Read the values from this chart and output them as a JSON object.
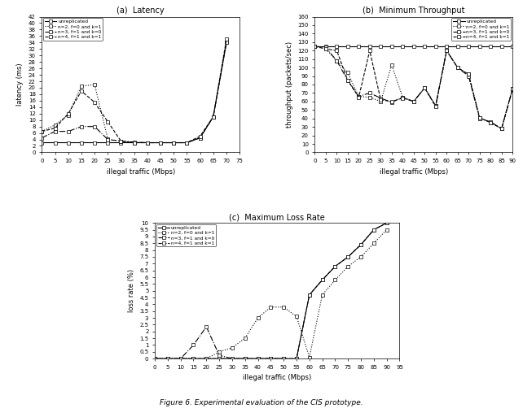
{
  "latency": {
    "xlabel": "illegal traffic (Mbps)",
    "ylabel": "latency (ms)",
    "title": "(a)  Latency",
    "xlim": [
      0,
      75
    ],
    "ylim": [
      0,
      42
    ],
    "xticks": [
      0,
      5,
      10,
      15,
      20,
      25,
      30,
      35,
      40,
      45,
      50,
      55,
      60,
      65,
      70,
      75
    ],
    "yticks": [
      0,
      2,
      4,
      6,
      8,
      10,
      12,
      14,
      16,
      18,
      20,
      22,
      24,
      26,
      28,
      30,
      32,
      34,
      36,
      38,
      40,
      42
    ],
    "series": [
      {
        "label": "unreplicated",
        "x": [
          0,
          5,
          10,
          15,
          20,
          25,
          30,
          35,
          40,
          45,
          50,
          55,
          60,
          65,
          70
        ],
        "y": [
          3.0,
          3.0,
          3.0,
          3.0,
          3.0,
          3.0,
          3.0,
          3.0,
          3.0,
          3.0,
          3.0,
          3.0,
          4.5,
          11.0,
          34.0
        ],
        "linestyle": "-",
        "marker": "s",
        "color": "black"
      },
      {
        "label": "n=2, f=0 and k=1",
        "x": [
          0,
          5,
          10,
          15,
          20,
          25
        ],
        "y": [
          6.5,
          8.5,
          11.5,
          20.5,
          21.0,
          4.2
        ],
        "linestyle": ":",
        "marker": "s",
        "color": "black"
      },
      {
        "label": "n=3, f=1 and k=0",
        "x": [
          0,
          5,
          10,
          15,
          20,
          25,
          30,
          35,
          40,
          45,
          50,
          55,
          60,
          65,
          70
        ],
        "y": [
          4.5,
          6.5,
          6.5,
          8.0,
          8.0,
          4.0,
          3.5,
          3.2,
          3.0,
          3.0,
          3.0,
          3.0,
          4.5,
          11.0,
          34.0
        ],
        "linestyle": "-.",
        "marker": "s",
        "color": "black"
      },
      {
        "label": "n=4, f=1 and k=1",
        "x": [
          0,
          5,
          10,
          15,
          20,
          25,
          30,
          35,
          40,
          45,
          50,
          55,
          60,
          65,
          70
        ],
        "y": [
          6.5,
          7.5,
          12.0,
          19.0,
          15.5,
          9.5,
          3.5,
          3.0,
          3.0,
          3.0,
          3.0,
          3.0,
          5.0,
          11.0,
          35.0
        ],
        "linestyle": "--",
        "marker": "s",
        "color": "black"
      }
    ]
  },
  "throughput": {
    "xlabel": "illegal traffic (Mbps)",
    "ylabel": "throughput (packets/sec)",
    "title": "(b)  Minimum Throughput",
    "xlim": [
      0,
      90
    ],
    "ylim": [
      0,
      160
    ],
    "xticks": [
      0,
      5,
      10,
      15,
      20,
      25,
      30,
      35,
      40,
      45,
      50,
      55,
      60,
      65,
      70,
      75,
      80,
      85,
      90
    ],
    "yticks": [
      0,
      10,
      20,
      30,
      40,
      50,
      60,
      70,
      80,
      90,
      100,
      110,
      120,
      130,
      140,
      150,
      160
    ],
    "series": [
      {
        "label": "unreplicated",
        "x": [
          0,
          5,
          10,
          15,
          20,
          25,
          30,
          35,
          40,
          45,
          50,
          55,
          60,
          65,
          70,
          75,
          80,
          85,
          90
        ],
        "y": [
          125,
          125,
          125,
          125,
          125,
          125,
          125,
          125,
          125,
          125,
          125,
          125,
          125,
          125,
          125,
          125,
          125,
          125,
          125
        ],
        "linestyle": "-",
        "marker": "s",
        "color": "black"
      },
      {
        "label": "n=2, f=0 and k=1",
        "x": [
          0,
          5,
          10,
          15,
          20,
          25,
          30,
          35,
          40,
          45,
          50,
          55,
          60,
          65,
          70,
          75,
          80,
          85,
          90
        ],
        "y": [
          125,
          122,
          108,
          94,
          66,
          65,
          60,
          103,
          65,
          60,
          76,
          55,
          120,
          100,
          92,
          41,
          35,
          28,
          75
        ],
        "linestyle": ":",
        "marker": "s",
        "color": "black"
      },
      {
        "label": "n=3, f=1 and k=0",
        "x": [
          0,
          5,
          10,
          15,
          20,
          25,
          30,
          35,
          40,
          45,
          50,
          55,
          60,
          65,
          70,
          75,
          80,
          85,
          90
        ],
        "y": [
          125,
          124,
          108,
          85,
          66,
          70,
          64,
          59,
          65,
          60,
          76,
          55,
          120,
          100,
          90,
          40,
          36,
          28,
          74
        ],
        "linestyle": "-.",
        "marker": "s",
        "color": "black"
      },
      {
        "label": "n=4, f=1 and k=1",
        "x": [
          0,
          5,
          10,
          15,
          20,
          25,
          30,
          35,
          40,
          45,
          50,
          55,
          60,
          65,
          70,
          75,
          80,
          85,
          90
        ],
        "y": [
          125,
          122,
          120,
          85,
          65,
          120,
          62,
          60,
          64,
          60,
          76,
          54,
          120,
          100,
          92,
          41,
          35,
          28,
          75
        ],
        "linestyle": "--",
        "marker": "s",
        "color": "black"
      }
    ]
  },
  "lossrate": {
    "xlabel": "illegal traffic (Mbps)",
    "ylabel": "loss rate (%)",
    "title": "(c)  Maximum Loss Rate",
    "xlim": [
      0,
      95
    ],
    "ylim": [
      0,
      10
    ],
    "xticks": [
      0,
      5,
      10,
      15,
      20,
      25,
      30,
      35,
      40,
      45,
      50,
      55,
      60,
      65,
      70,
      75,
      80,
      85,
      90,
      95
    ],
    "yticks": [
      0,
      0.5,
      1.0,
      1.5,
      2.0,
      2.5,
      3.0,
      3.5,
      4.0,
      4.5,
      5.0,
      5.5,
      6.0,
      6.5,
      7.0,
      7.5,
      8.0,
      8.5,
      9.0,
      9.5,
      10.0
    ],
    "series": [
      {
        "label": "unreplicated",
        "x": [
          0,
          5,
          10,
          15,
          20,
          25,
          30,
          35,
          40,
          45,
          50,
          55,
          60,
          65,
          70,
          75,
          80,
          85,
          90
        ],
        "y": [
          0.0,
          0.0,
          0.0,
          0.0,
          0.0,
          0.0,
          0.0,
          0.0,
          0.0,
          0.0,
          0.0,
          0.0,
          4.7,
          5.8,
          6.8,
          7.5,
          8.4,
          9.5,
          10.0
        ],
        "linestyle": "-",
        "marker": "s",
        "color": "black"
      },
      {
        "label": "n=2, f=0 and k=1",
        "x": [
          0,
          5,
          10,
          15,
          20,
          25,
          30,
          35,
          40,
          45,
          50,
          55,
          60,
          65,
          70,
          75,
          80,
          85,
          90
        ],
        "y": [
          0.0,
          0.0,
          0.0,
          0.0,
          0.0,
          0.5,
          0.8,
          1.5,
          3.0,
          3.8,
          3.8,
          3.1,
          0.1,
          4.7,
          5.8,
          6.8,
          7.5,
          8.5,
          9.5
        ],
        "linestyle": ":",
        "marker": "s",
        "color": "black"
      },
      {
        "label": "n=3, f=1 and k=0",
        "x": [
          0,
          5,
          10,
          15,
          20,
          25,
          30,
          35,
          40,
          45,
          50
        ],
        "y": [
          0.0,
          0.0,
          0.0,
          1.0,
          2.35,
          0.25,
          0.0,
          0.0,
          0.0,
          0.0,
          0.0
        ],
        "linestyle": "-.",
        "marker": "s",
        "color": "black"
      },
      {
        "label": "n=4, f=1 and k=1",
        "x": [
          0,
          5,
          10,
          15,
          20,
          25,
          30,
          35,
          40,
          45,
          50,
          55,
          60,
          65,
          70,
          75,
          80,
          85,
          90
        ],
        "y": [
          0.0,
          0.0,
          0.0,
          0.0,
          0.0,
          0.0,
          0.0,
          0.0,
          0.0,
          0.0,
          0.0,
          0.0,
          4.7,
          5.8,
          6.8,
          7.5,
          8.4,
          9.5,
          10.0
        ],
        "linestyle": "--",
        "marker": "s",
        "color": "black"
      }
    ]
  },
  "figure_title": "Figure 6. Experimental evaluation of the CIS prototype."
}
